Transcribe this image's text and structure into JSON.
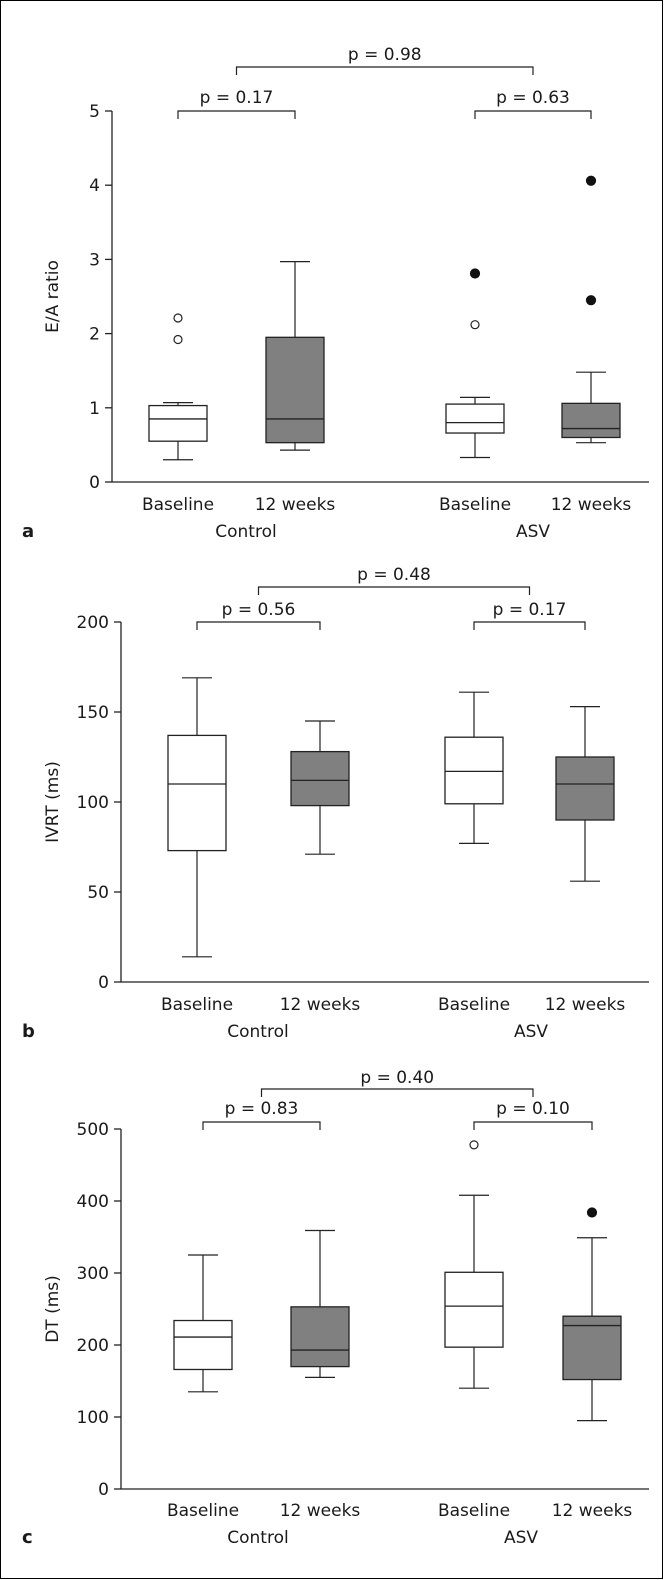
{
  "chart_data": [
    {
      "type": "box",
      "panel_label": "a",
      "ylabel": "E/A ratio",
      "ylim": [
        0,
        5
      ],
      "yticks": [
        0,
        1,
        2,
        3,
        4,
        5
      ],
      "groups": [
        "Control",
        "ASV"
      ],
      "categories": [
        "Baseline",
        "12 weeks",
        "Baseline",
        "12 weeks"
      ],
      "boxes": [
        {
          "group": "Control",
          "category": "Baseline",
          "fill": "#ffffff",
          "whisker_low": 0.3,
          "q1": 0.55,
          "median": 0.85,
          "q3": 1.03,
          "whisker_high": 1.07,
          "outliers": [
            {
              "value": 1.92,
              "style": "open"
            },
            {
              "value": 2.21,
              "style": "open"
            }
          ]
        },
        {
          "group": "Control",
          "category": "12 weeks",
          "fill": "#808080",
          "whisker_low": 0.43,
          "q1": 0.53,
          "median": 0.85,
          "q3": 1.95,
          "whisker_high": 2.97,
          "outliers": []
        },
        {
          "group": "ASV",
          "category": "Baseline",
          "fill": "#ffffff",
          "whisker_low": 0.33,
          "q1": 0.66,
          "median": 0.8,
          "q3": 1.05,
          "whisker_high": 1.14,
          "outliers": [
            {
              "value": 2.12,
              "style": "open"
            },
            {
              "value": 2.81,
              "style": "filled"
            }
          ]
        },
        {
          "group": "ASV",
          "category": "12 weeks",
          "fill": "#808080",
          "whisker_low": 0.53,
          "q1": 0.6,
          "median": 0.72,
          "q3": 1.06,
          "whisker_high": 1.48,
          "outliers": [
            {
              "value": 2.45,
              "style": "filled"
            },
            {
              "value": 4.06,
              "style": "filled"
            }
          ]
        }
      ],
      "comparisons": [
        {
          "label": "p = 0.17",
          "from": 0,
          "to": 1
        },
        {
          "label": "p = 0.63",
          "from": 2,
          "to": 3
        },
        {
          "label": "p = 0.98",
          "from": 0.5,
          "to": 2.5
        }
      ]
    },
    {
      "type": "box",
      "panel_label": "b",
      "ylabel": "IVRT (ms)",
      "ylim": [
        0,
        200
      ],
      "yticks": [
        0,
        50,
        100,
        150,
        200
      ],
      "groups": [
        "Control",
        "ASV"
      ],
      "categories": [
        "Baseline",
        "12 weeks",
        "Baseline",
        "12 weeks"
      ],
      "boxes": [
        {
          "group": "Control",
          "category": "Baseline",
          "fill": "#ffffff",
          "whisker_low": 14,
          "q1": 73,
          "median": 110,
          "q3": 137,
          "whisker_high": 169,
          "outliers": []
        },
        {
          "group": "Control",
          "category": "12 weeks",
          "fill": "#808080",
          "whisker_low": 71,
          "q1": 98,
          "median": 112,
          "q3": 128,
          "whisker_high": 145,
          "outliers": []
        },
        {
          "group": "ASV",
          "category": "Baseline",
          "fill": "#ffffff",
          "whisker_low": 77,
          "q1": 99,
          "median": 117,
          "q3": 136,
          "whisker_high": 161,
          "outliers": []
        },
        {
          "group": "ASV",
          "category": "12 weeks",
          "fill": "#808080",
          "whisker_low": 56,
          "q1": 90,
          "median": 110,
          "q3": 125,
          "whisker_high": 153,
          "outliers": []
        }
      ],
      "comparisons": [
        {
          "label": "p = 0.56",
          "from": 0,
          "to": 1
        },
        {
          "label": "p = 0.17",
          "from": 2,
          "to": 3
        },
        {
          "label": "p = 0.48",
          "from": 0.5,
          "to": 2.5
        }
      ]
    },
    {
      "type": "box",
      "panel_label": "c",
      "ylabel": "DT (ms)",
      "ylim": [
        0,
        500
      ],
      "yticks": [
        0,
        100,
        200,
        300,
        400,
        500
      ],
      "groups": [
        "Control",
        "ASV"
      ],
      "categories": [
        "Baseline",
        "12 weeks",
        "Baseline",
        "12 weeks"
      ],
      "boxes": [
        {
          "group": "Control",
          "category": "Baseline",
          "fill": "#ffffff",
          "whisker_low": 135,
          "q1": 166,
          "median": 211,
          "q3": 234,
          "whisker_high": 325,
          "outliers": []
        },
        {
          "group": "Control",
          "category": "12 weeks",
          "fill": "#808080",
          "whisker_low": 155,
          "q1": 170,
          "median": 193,
          "q3": 253,
          "whisker_high": 359,
          "outliers": []
        },
        {
          "group": "ASV",
          "category": "Baseline",
          "fill": "#ffffff",
          "whisker_low": 140,
          "q1": 197,
          "median": 254,
          "q3": 301,
          "whisker_high": 408,
          "outliers": [
            {
              "value": 478,
              "style": "open"
            }
          ]
        },
        {
          "group": "ASV",
          "category": "12 weeks",
          "fill": "#808080",
          "whisker_low": 95,
          "q1": 152,
          "median": 227,
          "q3": 240,
          "whisker_high": 349,
          "outliers": [
            {
              "value": 384,
              "style": "filled"
            }
          ]
        }
      ],
      "comparisons": [
        {
          "label": "p = 0.83",
          "from": 0,
          "to": 1
        },
        {
          "label": "p = 0.10",
          "from": 2,
          "to": 3
        },
        {
          "label": "p = 0.40",
          "from": 0.5,
          "to": 2.5
        }
      ]
    }
  ]
}
